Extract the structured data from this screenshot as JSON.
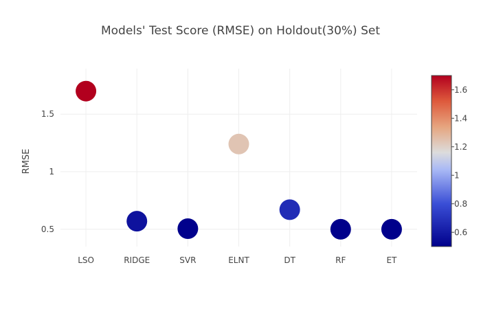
{
  "chart_data": {
    "type": "scatter",
    "title": "Models' Test Score (RMSE) on Holdout(30%) Set",
    "xlabel": "",
    "ylabel": "RMSE",
    "categories": [
      "LSO",
      "RIDGE",
      "SVR",
      "ELNT",
      "DT",
      "RF",
      "ET"
    ],
    "values": [
      1.7,
      0.57,
      0.505,
      1.24,
      0.67,
      0.5,
      0.5
    ],
    "yticks": [
      0.5,
      1,
      1.5
    ],
    "ytick_labels": [
      "0.5",
      "1",
      "1.5"
    ],
    "ylim": [
      0.35,
      1.895
    ],
    "grid": true,
    "colorscale": {
      "name": "coolwarm",
      "range": [
        0.5,
        1.7
      ],
      "ticks": [
        0.6,
        0.8,
        1,
        1.2,
        1.4,
        1.6
      ],
      "tick_labels": [
        "0.6",
        "0.8",
        "1",
        "1.2",
        "1.4",
        "1.6"
      ],
      "stops": [
        {
          "t": 0.0,
          "color": "#00008b"
        },
        {
          "t": 0.25,
          "color": "#3a4ed6"
        },
        {
          "t": 0.45,
          "color": "#a9b9f5"
        },
        {
          "t": 0.55,
          "color": "#dcdcdc"
        },
        {
          "t": 0.7,
          "color": "#e6a57f"
        },
        {
          "t": 0.85,
          "color": "#de5a3c"
        },
        {
          "t": 1.0,
          "color": "#b2001e"
        }
      ]
    }
  }
}
